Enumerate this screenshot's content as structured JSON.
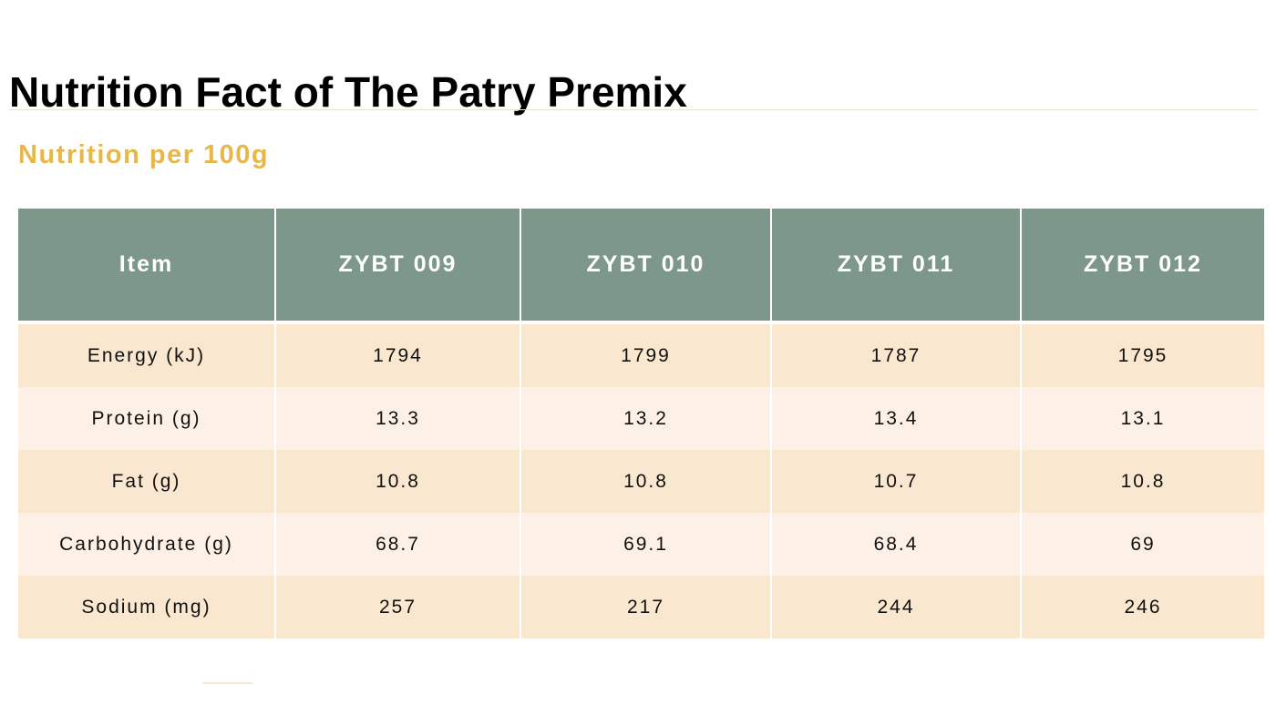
{
  "title": "Nutrition Fact of The Patry Premix",
  "subtitle": "Nutrition per 100g",
  "colors": {
    "header_bg": "#7e978b",
    "row_dark": "#f9e7cf",
    "row_light": "#fdf1e7",
    "subtitle": "#e6b84a"
  },
  "table": {
    "headers": [
      "Item",
      "ZYBT 009",
      "ZYBT 010",
      "ZYBT 011",
      "ZYBT 012"
    ],
    "rows": [
      [
        "Energy (kJ)",
        "1794",
        "1799",
        "1787",
        "1795"
      ],
      [
        "Protein (g)",
        "13.3",
        "13.2",
        "13.4",
        "13.1"
      ],
      [
        "Fat (g)",
        "10.8",
        "10.8",
        "10.7",
        "10.8"
      ],
      [
        "Carbohydrate (g)",
        "68.7",
        "69.1",
        "68.4",
        "69"
      ],
      [
        "Sodium (mg)",
        "257",
        "217",
        "244",
        "246"
      ]
    ]
  }
}
